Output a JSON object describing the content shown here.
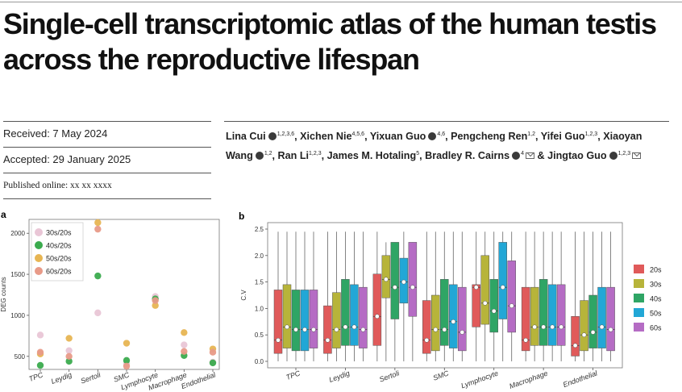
{
  "title": "Single-cell transcriptomic atlas of the human testis across the reproductive lifespan",
  "received": "Received: 7 May 2024",
  "accepted": "Accepted: 29 January 2025",
  "published": "Published online: xx xx xxxx",
  "authors": [
    {
      "name": "Lina Cui",
      "orcid": true,
      "aff": "1,2,3,6",
      "mail": false
    },
    {
      "name": "Xichen Nie",
      "orcid": false,
      "aff": "4,5,6",
      "mail": false
    },
    {
      "name": "Yixuan Guo",
      "orcid": true,
      "aff": "4,6",
      "mail": false
    },
    {
      "name": "Pengcheng Ren",
      "orcid": false,
      "aff": "1,2",
      "mail": false
    },
    {
      "name": "Yifei Guo",
      "orcid": false,
      "aff": "1,2,3",
      "mail": false
    },
    {
      "name": "Xiaoyan Wang",
      "orcid": true,
      "aff": "1,2",
      "mail": false
    },
    {
      "name": "Ran Li",
      "orcid": false,
      "aff": "1,2,3",
      "mail": false
    },
    {
      "name": "James M. Hotaling",
      "orcid": false,
      "aff": "5",
      "mail": false
    },
    {
      "name": "Bradley R. Cairns",
      "orcid": true,
      "aff": "4",
      "mail": true
    },
    {
      "name": "Jingtao Guo",
      "orcid": true,
      "aff": "1,2,3",
      "mail": true
    }
  ],
  "colors": {
    "c20s": "#e05a5a",
    "c30s": "#b7b43a",
    "c40s": "#2fa565",
    "c50s": "#22a7d6",
    "c60s": "#b56cc4",
    "a30": "#e9c6d6",
    "a40": "#3bab4e",
    "a50": "#e7b553",
    "a60": "#e89a88"
  },
  "chart_data": [
    {
      "type": "scatter",
      "panel_label": "a",
      "ylabel": "DEG counts",
      "categories": [
        "TPC",
        "Leydig",
        "Sertoli",
        "SMC",
        "Lymphocyte",
        "Macrophage",
        "Endothelial"
      ],
      "yticks": [
        500,
        1000,
        1500,
        2000
      ],
      "ylim": [
        380,
        2130
      ],
      "series": [
        {
          "name": "30s/20s",
          "color": "#e9c6d6",
          "values": [
            760,
            570,
            1030,
            410,
            1230,
            640,
            430
          ]
        },
        {
          "name": "40s/20s",
          "color": "#3bab4e",
          "values": [
            390,
            440,
            1480,
            450,
            1200,
            510,
            420
          ]
        },
        {
          "name": "50s/20s",
          "color": "#e7b553",
          "values": [
            530,
            720,
            2130,
            660,
            1120,
            790,
            590
          ]
        },
        {
          "name": "60s/20s",
          "color": "#e89a88",
          "values": [
            550,
            500,
            2050,
            380,
            1180,
            560,
            550
          ]
        }
      ]
    },
    {
      "type": "box",
      "panel_label": "b",
      "ylabel": "C.V",
      "categories": [
        "TPC",
        "Leydig",
        "Sertoli",
        "SMC",
        "Lymphocyte",
        "Macrophage",
        "Endothelial"
      ],
      "yticks": [
        "0.0",
        "0.5",
        "1.0",
        "1.5",
        "2.0",
        "2.5"
      ],
      "ylim": [
        0,
        2.5
      ],
      "legend": [
        "20s",
        "30s",
        "40s",
        "50s",
        "60s"
      ],
      "groups": [
        [
          [
            0,
            0.15,
            0.4,
            1.35,
            2.45
          ],
          [
            0,
            0.25,
            0.65,
            1.45,
            2.45
          ],
          [
            0,
            0.2,
            0.6,
            1.35,
            2.45
          ],
          [
            0,
            0.2,
            0.6,
            1.35,
            2.45
          ],
          [
            0,
            0.25,
            0.6,
            1.35,
            2.45
          ]
        ],
        [
          [
            0,
            0.15,
            0.4,
            1.05,
            2.45
          ],
          [
            0,
            0.25,
            0.6,
            1.3,
            2.45
          ],
          [
            0,
            0.3,
            0.65,
            1.55,
            2.45
          ],
          [
            0,
            0.3,
            0.65,
            1.45,
            2.45
          ],
          [
            0,
            0.25,
            0.6,
            1.4,
            2.45
          ]
        ],
        [
          [
            0,
            0.3,
            0.85,
            1.65,
            2.45
          ],
          [
            0,
            1.2,
            1.55,
            2.0,
            2.25
          ],
          [
            0,
            0.8,
            1.4,
            2.25,
            2.25
          ],
          [
            0,
            1.1,
            1.5,
            1.95,
            2.45
          ],
          [
            0,
            0.85,
            1.4,
            2.25,
            2.25
          ]
        ],
        [
          [
            0,
            0.15,
            0.4,
            1.15,
            2.45
          ],
          [
            0,
            0.2,
            0.6,
            1.25,
            2.45
          ],
          [
            0,
            0.3,
            0.6,
            1.55,
            2.45
          ],
          [
            0,
            0.25,
            0.75,
            1.45,
            2.45
          ],
          [
            0,
            0.2,
            0.55,
            1.4,
            2.45
          ]
        ],
        [
          [
            0,
            0.65,
            1.4,
            1.45,
            2.45
          ],
          [
            0,
            0.7,
            1.1,
            2.0,
            2.45
          ],
          [
            0,
            0.55,
            0.95,
            1.55,
            2.45
          ],
          [
            0,
            0.8,
            1.4,
            2.25,
            2.45
          ],
          [
            0,
            0.55,
            1.05,
            1.9,
            2.45
          ]
        ],
        [
          [
            0,
            0.2,
            0.4,
            1.4,
            2.45
          ],
          [
            0,
            0.3,
            0.65,
            1.4,
            2.45
          ],
          [
            0,
            0.3,
            0.65,
            1.55,
            2.45
          ],
          [
            0,
            0.3,
            0.65,
            1.45,
            2.45
          ],
          [
            0,
            0.3,
            0.65,
            1.45,
            2.45
          ]
        ],
        [
          [
            0,
            0.1,
            0.3,
            0.85,
            2.45
          ],
          [
            0,
            0.2,
            0.5,
            1.15,
            2.45
          ],
          [
            0,
            0.25,
            0.55,
            1.25,
            2.45
          ],
          [
            0,
            0.25,
            0.65,
            1.4,
            2.45
          ],
          [
            0,
            0.2,
            0.6,
            1.4,
            2.45
          ]
        ]
      ]
    }
  ]
}
